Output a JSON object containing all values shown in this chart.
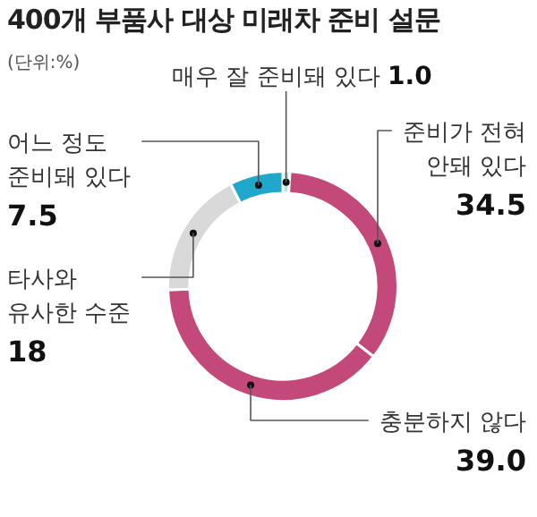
{
  "chart_data": {
    "type": "donut",
    "title": "400개 부품사 대상 미래차 준비 설문",
    "subtitle": "(단위:%)",
    "categories": [
      "매우 잘 준비돼 있다",
      "준비가 전혀 안돼 있다",
      "충분하지 않다",
      "타사와 유사한 수준",
      "어느 정도 준비돼 있다"
    ],
    "values": [
      1.0,
      34.5,
      39.0,
      18,
      7.5
    ],
    "value_labels": [
      "1.0",
      "34.5",
      "39.0",
      "18",
      "7.5"
    ],
    "colors": [
      "#b9e2f0",
      "#c4497b",
      "#c4497b",
      "#d9d9d9",
      "#1fa8cc"
    ],
    "legend": false
  }
}
